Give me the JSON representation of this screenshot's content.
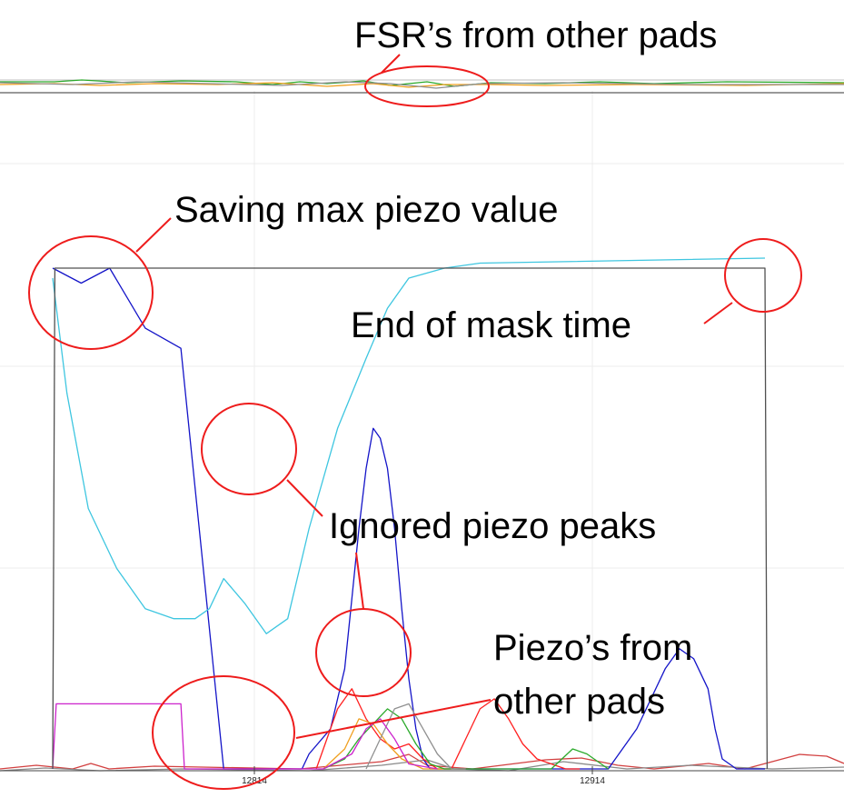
{
  "chart_data": {
    "type": "line",
    "title": "",
    "xlabel": "",
    "ylabel": "",
    "grid": true,
    "x_ticks": [
      "12814",
      "12914"
    ],
    "series": [
      {
        "color": "#1414c8",
        "x": [
          0,
          4,
          8,
          13,
          18,
          24,
          35,
          36,
          39,
          41,
          42,
          43,
          44,
          45,
          46,
          47,
          48,
          49,
          50,
          51,
          52,
          53,
          54,
          55,
          56,
          57,
          58,
          59,
          60,
          78,
          82,
          86,
          88,
          90,
          92,
          93,
          94,
          96,
          100
        ],
        "values": [
          1.0,
          0.97,
          1.0,
          0.88,
          0.84,
          0.0,
          0.0,
          0.03,
          0.08,
          0.2,
          0.34,
          0.48,
          0.6,
          0.68,
          0.66,
          0.6,
          0.48,
          0.32,
          0.18,
          0.08,
          0.02,
          0.0,
          0.0,
          0.0,
          0.0,
          0.0,
          0.0,
          0.0,
          0.0,
          0.0,
          0.08,
          0.2,
          0.24,
          0.22,
          0.16,
          0.08,
          0.02,
          0.0,
          0.0
        ]
      },
      {
        "color": "#3ec6e0",
        "x": [
          0,
          2,
          5,
          9,
          13,
          17,
          20,
          22,
          24,
          27,
          30,
          33,
          36,
          40,
          44,
          47,
          50,
          55,
          60,
          100
        ],
        "values": [
          0.98,
          0.75,
          0.52,
          0.4,
          0.32,
          0.3,
          0.3,
          0.32,
          0.38,
          0.33,
          0.27,
          0.3,
          0.48,
          0.68,
          0.82,
          0.92,
          0.98,
          1.0,
          1.01,
          1.02
        ]
      },
      {
        "color": "#ff2020",
        "x": [
          37,
          40,
          42,
          44,
          46,
          48,
          50,
          52,
          54,
          56,
          58,
          60,
          62,
          64,
          66,
          68,
          70,
          72,
          74
        ],
        "values": [
          0.0,
          0.12,
          0.16,
          0.1,
          0.06,
          0.04,
          0.05,
          0.02,
          0.0,
          0.0,
          0.06,
          0.12,
          0.14,
          0.1,
          0.05,
          0.02,
          0.01,
          0.0,
          0.0
        ]
      },
      {
        "color": "#f0a020",
        "x": [
          38,
          41,
          43,
          45,
          47,
          49,
          52,
          55,
          58
        ],
        "values": [
          0.0,
          0.04,
          0.1,
          0.09,
          0.05,
          0.02,
          0.0,
          0.0,
          0.0
        ]
      },
      {
        "color": "#2caa2c",
        "x": [
          38,
          41,
          43,
          45,
          47,
          49,
          51,
          53,
          55,
          60,
          70,
          73,
          75,
          78
        ],
        "values": [
          0.0,
          0.02,
          0.06,
          0.09,
          0.12,
          0.1,
          0.05,
          0.01,
          0.0,
          0.0,
          0.0,
          0.04,
          0.03,
          0.0
        ]
      },
      {
        "color": "#909090",
        "x": [
          44,
          46,
          48,
          50,
          52,
          54,
          56,
          58
        ],
        "values": [
          0.0,
          0.06,
          0.12,
          0.13,
          0.08,
          0.03,
          0.0,
          0.0
        ]
      },
      {
        "color": "#cc22cc",
        "x": [
          0,
          0.5,
          18,
          18.5,
          38,
          42,
          44,
          46,
          48,
          50,
          54
        ],
        "values": [
          0.0,
          0.13,
          0.13,
          0.0,
          0.0,
          0.03,
          0.08,
          0.1,
          0.06,
          0.01,
          0.0
        ]
      },
      {
        "color": "#505050",
        "x": [
          0,
          0.3,
          100,
          100.3
        ],
        "values": [
          0.0,
          1.0,
          1.0,
          0.0
        ]
      }
    ]
  },
  "annotations": {
    "fsr_other_pads": "FSR’s from other pads",
    "saving_max_piezo": "Saving max piezo value",
    "end_of_mask_time": "End of mask time",
    "ignored_piezo_peaks": "Ignored piezo peaks",
    "piezos_other_pads_line1": "Piezo’s from",
    "piezos_other_pads_line2": "other pads"
  },
  "colors": {
    "annotation": "#ee1c1c"
  }
}
